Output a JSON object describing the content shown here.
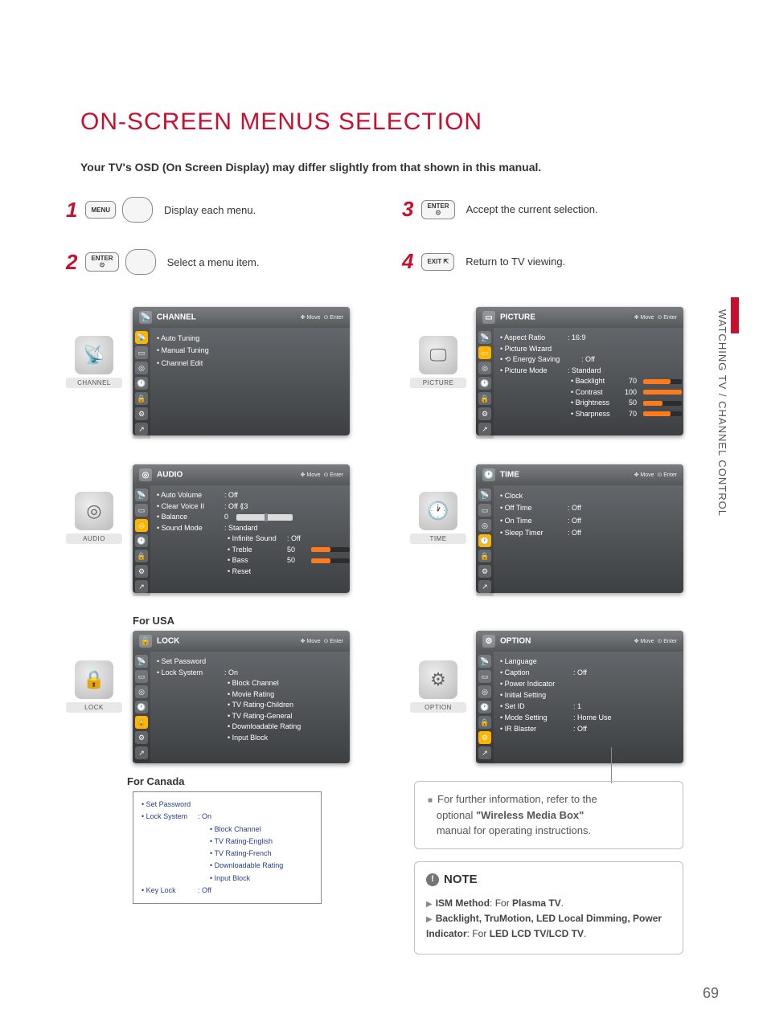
{
  "page_title": "ON-SCREEN MENUS SELECTION",
  "subtitle": "Your TV's OSD (On Screen Display) may differ slightly from that shown in this manual.",
  "side_label": "WATCHING TV / CHANNEL CONTROL",
  "page_number": "69",
  "steps": [
    {
      "n": "1",
      "btn1": "MENU",
      "btn2": "nav",
      "text": "Display each menu."
    },
    {
      "n": "2",
      "btn1": "ENTER\n⊙",
      "btn2": "nav",
      "text": "Select a menu item."
    },
    {
      "n": "3",
      "btn1": "ENTER\n⊙",
      "text": "Accept the current selection."
    },
    {
      "n": "4",
      "btn1": "EXIT ⇱",
      "text": "Return to TV viewing."
    }
  ],
  "hints": {
    "move": "✥ Move",
    "enter": "⊙ Enter"
  },
  "channel_panel": {
    "title": "CHANNEL",
    "items": [
      "Auto Tuning",
      "Manual Tuning",
      "Channel Edit"
    ]
  },
  "picture_panel": {
    "title": "PICTURE",
    "rows": [
      {
        "lab": "Aspect Ratio",
        "val": ": 16:9"
      },
      {
        "lab": "Picture Wizard",
        "val": ""
      },
      {
        "lab": "⟲ Energy Saving",
        "val": ": Off"
      },
      {
        "lab": "Picture Mode",
        "val": ": Standard"
      }
    ],
    "subs": [
      {
        "k": "Backlight",
        "n": "70",
        "pct": 70
      },
      {
        "k": "Contrast",
        "n": "100",
        "pct": 100
      },
      {
        "k": "Brightness",
        "n": "50",
        "pct": 50
      },
      {
        "k": "Sharpness",
        "n": "70",
        "pct": 70,
        "dim": true
      }
    ]
  },
  "audio_panel": {
    "title": "AUDIO",
    "rows": [
      {
        "lab": "Auto Volume",
        "val": ": Off"
      },
      {
        "lab": "Clear Voice II",
        "val": ": Off ⟪3"
      },
      {
        "lab": "Balance",
        "val": "0",
        "slider": true
      },
      {
        "lab": "Sound Mode",
        "val": ": Standard"
      }
    ],
    "subs": [
      {
        "k": "Infinite Sound",
        "n": ": Off",
        "nobar": true
      },
      {
        "k": "Treble",
        "n": "50",
        "pct": 50
      },
      {
        "k": "Bass",
        "n": "50",
        "pct": 50
      },
      {
        "k": "Reset",
        "n": "",
        "nobar": true,
        "dim": true
      }
    ]
  },
  "time_panel": {
    "title": "TIME",
    "rows": [
      {
        "lab": "Clock",
        "val": ""
      },
      {
        "lab": "Off Time",
        "val": ": Off"
      },
      {
        "lab": "On Time",
        "val": ": Off"
      },
      {
        "lab": "Sleep Timer",
        "val": ": Off"
      }
    ]
  },
  "lock_panel": {
    "title": "LOCK",
    "heading": "For USA",
    "rows": [
      {
        "lab": "Set Password",
        "val": ""
      },
      {
        "lab": "Lock System",
        "val": ": On"
      }
    ],
    "subs": [
      "Block Channel",
      "Movie Rating",
      "TV Rating-Children",
      "TV Rating-General",
      "Downloadable Rating"
    ],
    "dim": "Input Block"
  },
  "option_panel": {
    "title": "OPTION",
    "rows": [
      {
        "lab": "Language",
        "val": ""
      },
      {
        "lab": "Caption",
        "val": ": Off"
      },
      {
        "lab": "Power Indicator",
        "val": ""
      },
      {
        "lab": "Initial Setting",
        "val": ""
      },
      {
        "lab": "Set ID",
        "val": ": 1"
      },
      {
        "lab": "Mode Setting",
        "val": ": Home Use"
      },
      {
        "lab": "IR Blaster",
        "val": ": Off"
      }
    ]
  },
  "canada": {
    "heading": "For Canada",
    "rows": [
      {
        "lab": "Set Password",
        "val": ""
      },
      {
        "lab": "Lock System",
        "val": ": On"
      }
    ],
    "subs": [
      "Block Channel",
      "TV Rating-English",
      "TV Rating-French",
      "Downloadable Rating",
      "Input Block"
    ],
    "last": {
      "lab": "Key Lock",
      "val": ": Off"
    }
  },
  "info_paragraph": {
    "line1": "For further information, refer to the",
    "line2a": "optional ",
    "line2b": "\"Wireless Media Box\"",
    "line3": "manual for operating instructions."
  },
  "note": {
    "title": "NOTE",
    "item1a": "ISM Method",
    "item1b": ": For ",
    "item1c": "Plasma TV",
    "item1d": ".",
    "item2a": "Backlight, TruMotion, LED Local Dimming, Power Indicator",
    "item2b": ": For ",
    "item2c": "LED LCD TV/LCD TV",
    "item2d": "."
  },
  "category_icons": {
    "channel": "CHANNEL",
    "picture": "PICTURE",
    "audio": "AUDIO",
    "time": "TIME",
    "lock": "LOCK",
    "option": "OPTION"
  }
}
